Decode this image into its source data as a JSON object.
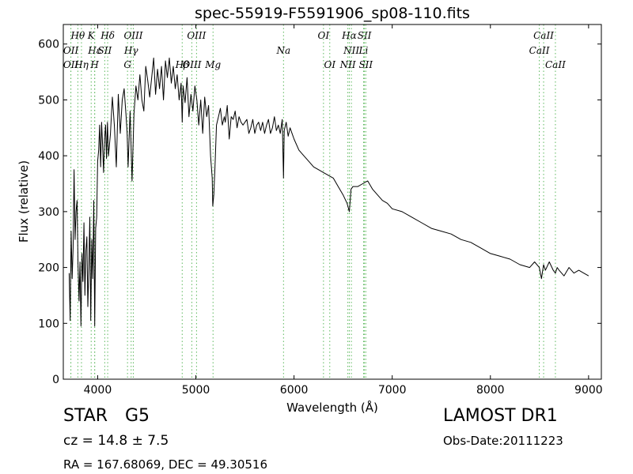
{
  "chart_data": {
    "type": "line",
    "title": "spec-55919-F5591906_sp08-110.fits",
    "xlabel": "Wavelength (Å)",
    "ylabel": "Flux (relative)",
    "xlim": [
      3650,
      9130
    ],
    "ylim": [
      0,
      635
    ],
    "xticks": [
      4000,
      5000,
      6000,
      7000,
      8000,
      9000
    ],
    "yticks": [
      0,
      100,
      200,
      300,
      400,
      500,
      600
    ],
    "line_color": "#000000",
    "marker_line_color": "#5cb85c",
    "series": [
      {
        "x": [
          3710,
          3720,
          3730,
          3740,
          3750,
          3760,
          3770,
          3780,
          3790,
          3800,
          3810,
          3820,
          3830,
          3840,
          3850,
          3860,
          3870,
          3880,
          3890,
          3900,
          3910,
          3920,
          3930,
          3940,
          3950,
          3960,
          3970,
          3980,
          3990,
          4000,
          4010,
          4020,
          4030,
          4040,
          4050,
          4060,
          4070,
          4080,
          4090,
          4100,
          4110,
          4130,
          4150,
          4170,
          4190,
          4210,
          4230,
          4250,
          4270,
          4290,
          4300,
          4310,
          4330,
          4340,
          4350,
          4370,
          4390,
          4410,
          4430,
          4450,
          4470,
          4490,
          4510,
          4530,
          4550,
          4570,
          4590,
          4610,
          4630,
          4650,
          4670,
          4690,
          4710,
          4730,
          4750,
          4770,
          4790,
          4810,
          4830,
          4850,
          4861,
          4870,
          4890,
          4910,
          4930,
          4950,
          4970,
          4990,
          5010,
          5030,
          5050,
          5070,
          5090,
          5110,
          5130,
          5150,
          5167,
          5172,
          5183,
          5195,
          5210,
          5230,
          5250,
          5270,
          5290,
          5300,
          5320,
          5340,
          5360,
          5380,
          5400,
          5420,
          5440,
          5460,
          5480,
          5500,
          5520,
          5540,
          5560,
          5580,
          5600,
          5620,
          5640,
          5660,
          5680,
          5700,
          5720,
          5740,
          5760,
          5780,
          5800,
          5820,
          5840,
          5860,
          5880,
          5893,
          5900,
          5920,
          5940,
          5960,
          5980,
          6000,
          6050,
          6100,
          6150,
          6200,
          6250,
          6300,
          6350,
          6400,
          6450,
          6500,
          6540,
          6563,
          6580,
          6600,
          6650,
          6700,
          6750,
          6800,
          6850,
          6900,
          6950,
          7000,
          7100,
          7200,
          7300,
          7400,
          7500,
          7600,
          7700,
          7800,
          7900,
          8000,
          8100,
          8200,
          8300,
          8400,
          8450,
          8498,
          8520,
          8542,
          8560,
          8600,
          8640,
          8662,
          8680,
          8700,
          8750,
          8800,
          8850,
          8900,
          8950,
          9000
        ],
        "y": [
          190,
          105,
          265,
          180,
          235,
          375,
          250,
          300,
          320,
          205,
          140,
          210,
          95,
          225,
          175,
          280,
          150,
          230,
          255,
          130,
          200,
          290,
          105,
          250,
          180,
          320,
          95,
          270,
          290,
          390,
          410,
          455,
          380,
          460,
          420,
          370,
          430,
          455,
          395,
          460,
          400,
          440,
          505,
          455,
          380,
          510,
          440,
          500,
          520,
          470,
          440,
          380,
          480,
          420,
          355,
          475,
          525,
          500,
          545,
          500,
          480,
          560,
          535,
          505,
          540,
          575,
          510,
          555,
          520,
          560,
          500,
          570,
          540,
          575,
          530,
          560,
          520,
          545,
          500,
          530,
          460,
          525,
          495,
          540,
          470,
          510,
          480,
          525,
          500,
          455,
          500,
          440,
          505,
          470,
          490,
          400,
          360,
          310,
          330,
          380,
          455,
          470,
          485,
          455,
          470,
          460,
          490,
          430,
          470,
          465,
          480,
          450,
          470,
          460,
          455,
          460,
          465,
          440,
          450,
          465,
          440,
          455,
          460,
          445,
          460,
          440,
          455,
          465,
          440,
          450,
          470,
          445,
          455,
          440,
          465,
          360,
          445,
          460,
          435,
          450,
          440,
          430,
          410,
          400,
          390,
          380,
          375,
          370,
          365,
          360,
          345,
          330,
          315,
          300,
          340,
          345,
          345,
          350,
          355,
          340,
          330,
          320,
          315,
          305,
          300,
          290,
          280,
          270,
          265,
          260,
          250,
          245,
          235,
          225,
          220,
          215,
          205,
          200,
          210,
          200,
          180,
          205,
          195,
          210,
          195,
          190,
          200,
          195,
          185,
          200,
          190,
          195,
          190,
          185
        ]
      }
    ],
    "line_markers": [
      {
        "label": "Hθ",
        "x": 3798,
        "row": 0
      },
      {
        "label": "K",
        "x": 3934,
        "row": 0
      },
      {
        "label": "Hδ",
        "x": 4102,
        "row": 0
      },
      {
        "label": "OIII",
        "x": 4363,
        "row": 0
      },
      {
        "label": "OIII",
        "x": 5007,
        "row": 0
      },
      {
        "label": "OI",
        "x": 6300,
        "row": 0
      },
      {
        "label": "Hα",
        "x": 6563,
        "row": 0
      },
      {
        "label": "SII",
        "x": 6717,
        "row": 0
      },
      {
        "label": "CaII",
        "x": 8542,
        "row": 0
      },
      {
        "label": "OII",
        "x": 3727,
        "row": 1
      },
      {
        "label": "Hε",
        "x": 3970,
        "row": 1
      },
      {
        "label": "SII",
        "x": 4072,
        "row": 1
      },
      {
        "label": "Hγ",
        "x": 4341,
        "row": 1
      },
      {
        "label": "Na",
        "x": 5893,
        "row": 1
      },
      {
        "label": "NII",
        "x": 6584,
        "row": 1
      },
      {
        "label": "Li",
        "x": 6708,
        "row": 1
      },
      {
        "label": "CaII",
        "x": 8498,
        "row": 1
      },
      {
        "label": "OII",
        "x": 3727,
        "row": 2
      },
      {
        "label": "Hη",
        "x": 3835,
        "row": 2
      },
      {
        "label": "H",
        "x": 3969,
        "row": 2
      },
      {
        "label": "G",
        "x": 4304,
        "row": 2
      },
      {
        "label": "Hβ",
        "x": 4861,
        "row": 2
      },
      {
        "label": "OIII",
        "x": 4959,
        "row": 2
      },
      {
        "label": "Mg",
        "x": 5175,
        "row": 2
      },
      {
        "label": "OI",
        "x": 6364,
        "row": 2
      },
      {
        "label": "NII",
        "x": 6548,
        "row": 2
      },
      {
        "label": "SII",
        "x": 6731,
        "row": 2
      },
      {
        "label": "CaII",
        "x": 8662,
        "row": 2
      }
    ]
  },
  "footer": {
    "class_label": "STAR",
    "subclass": "G5",
    "survey": "LAMOST DR1",
    "redshift": "cz = 14.8 ± 7.5",
    "obs_date": "Obs-Date:20111223",
    "coords": "RA = 167.68069, DEC = 49.30516"
  }
}
